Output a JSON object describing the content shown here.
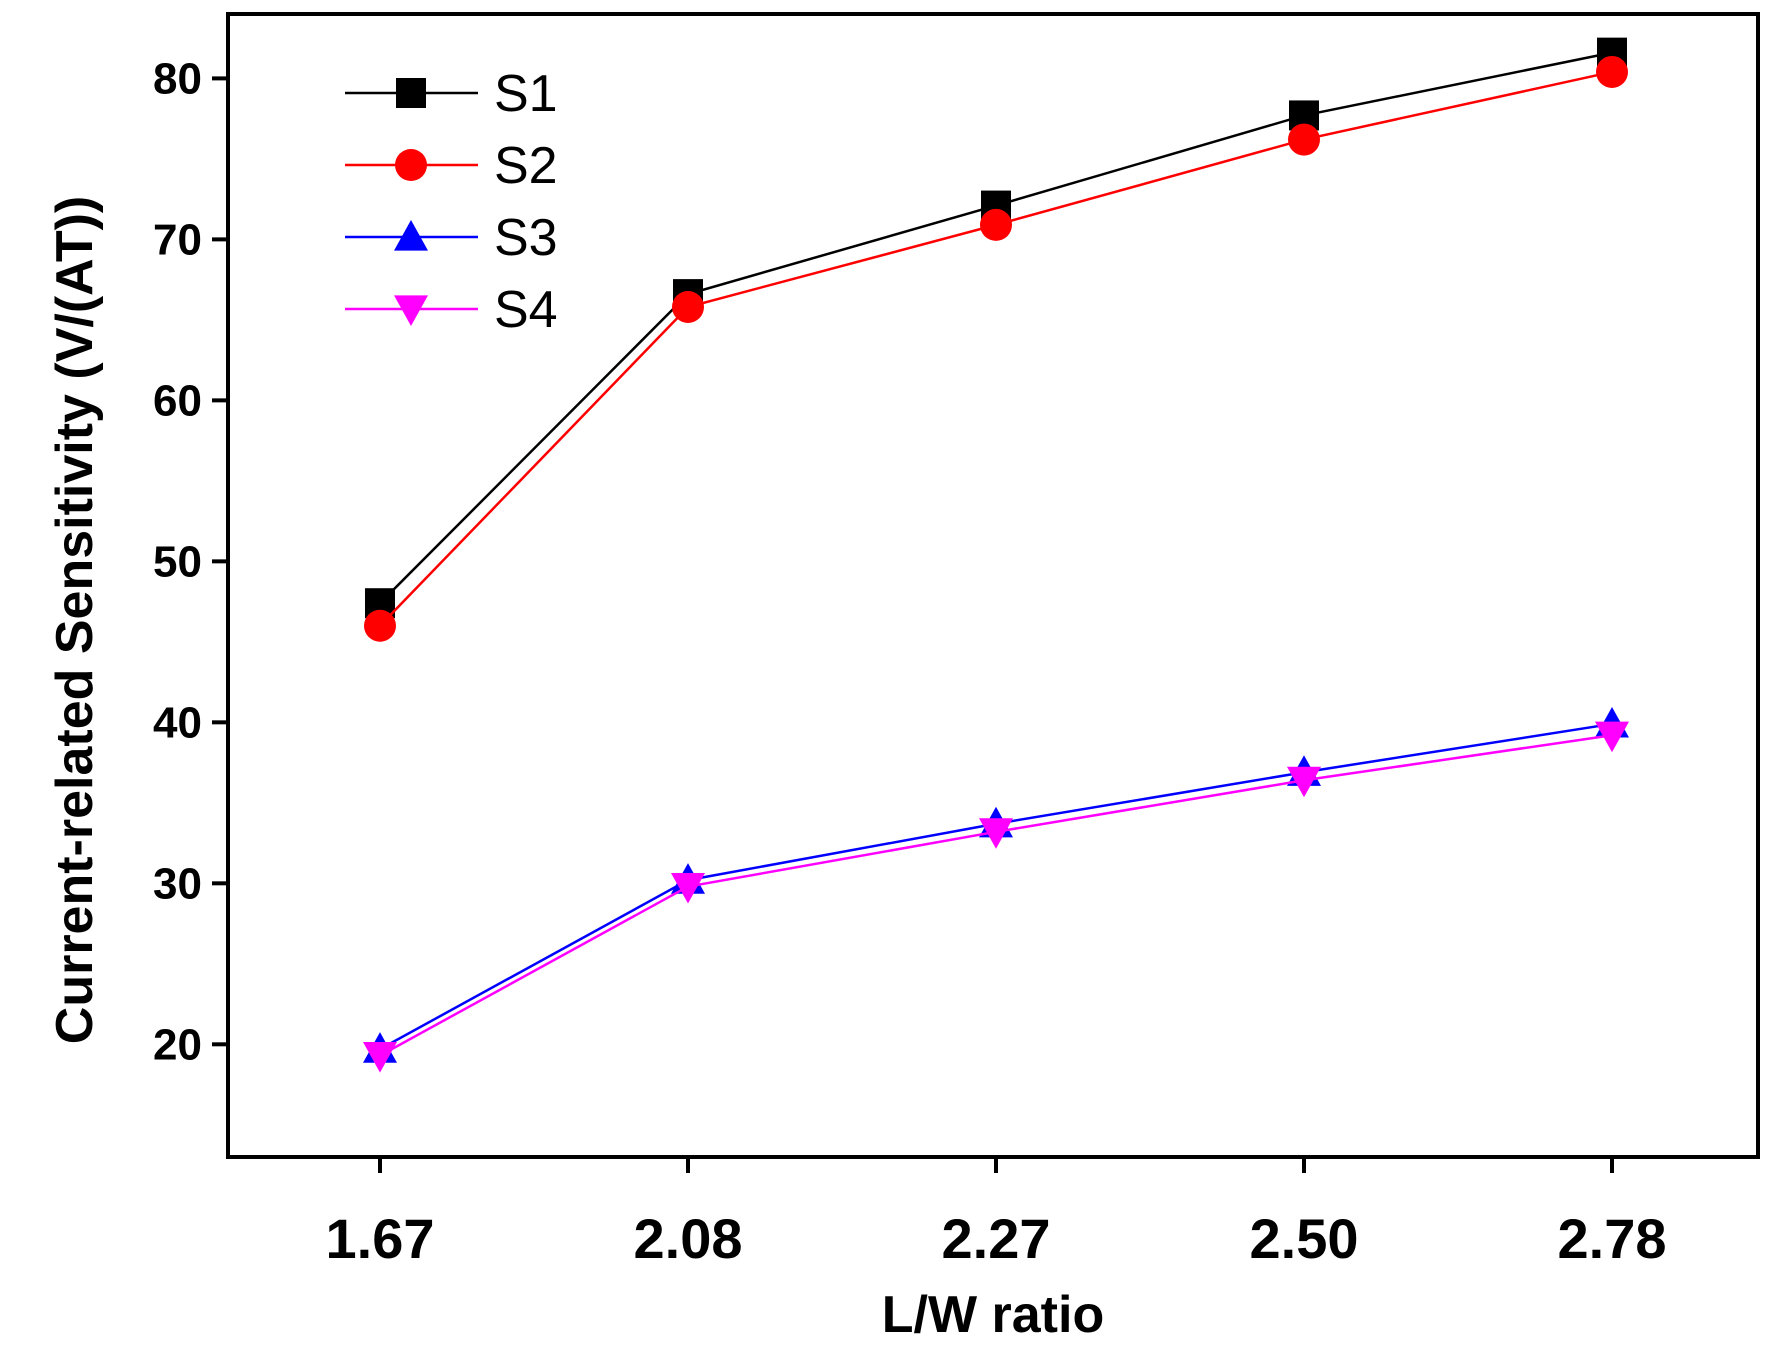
{
  "chart_data": {
    "type": "line",
    "title": "",
    "xlabel": "L/W ratio",
    "ylabel": "Current-related Sensitivity (V/(AT))",
    "categories": [
      "1.67",
      "2.08",
      "2.27",
      "2.50",
      "2.78"
    ],
    "ylim": [
      13,
      84
    ],
    "yticks": [
      20,
      30,
      40,
      50,
      60,
      70,
      80
    ],
    "grid": false,
    "legend_position": "top-left",
    "series": [
      {
        "name": "S1",
        "color": "#000000",
        "marker": "square",
        "values": [
          47.4,
          66.6,
          72.1,
          77.7,
          81.6
        ]
      },
      {
        "name": "S2",
        "color": "#ff0000",
        "marker": "circle",
        "values": [
          46.0,
          65.8,
          70.9,
          76.2,
          80.4
        ]
      },
      {
        "name": "S3",
        "color": "#0000ff",
        "marker": "triangle-up",
        "values": [
          19.7,
          30.2,
          33.7,
          36.9,
          39.9
        ]
      },
      {
        "name": "S4",
        "color": "#ff00ff",
        "marker": "triangle-down",
        "values": [
          19.3,
          29.8,
          33.2,
          36.4,
          39.2
        ]
      }
    ]
  }
}
